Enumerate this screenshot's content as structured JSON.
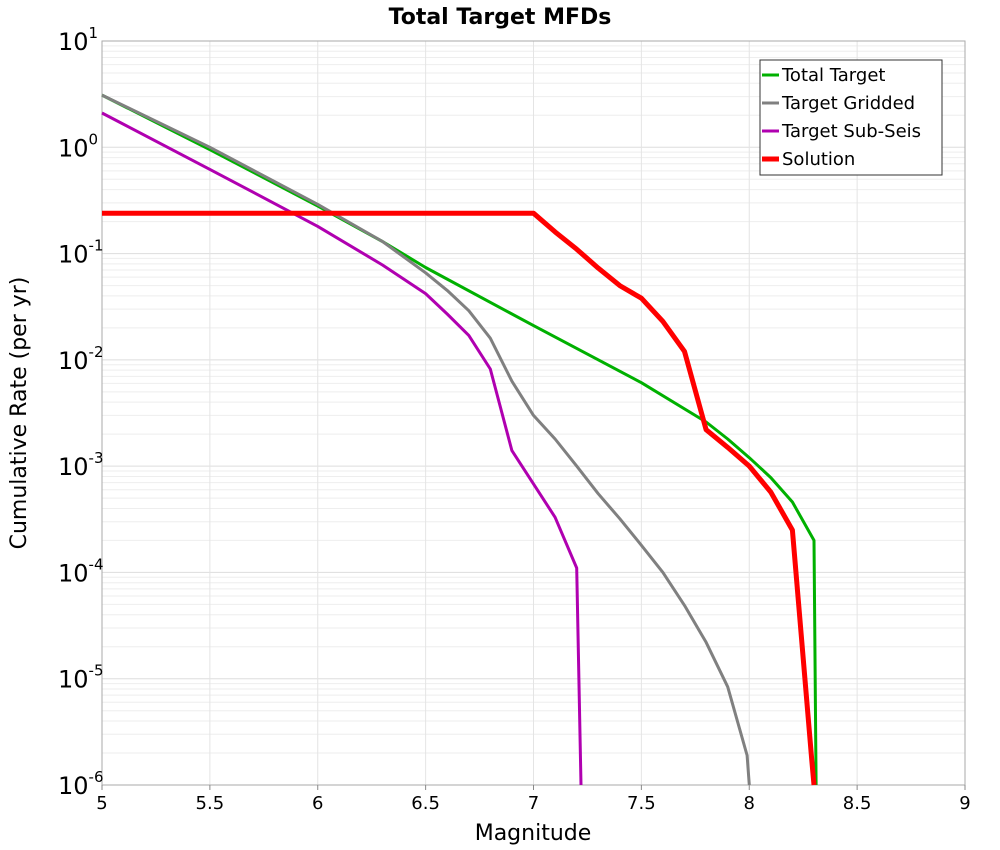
{
  "chart_data": {
    "type": "line",
    "title": "Total Target MFDs",
    "xlabel": "Magnitude",
    "ylabel": "Cumulative Rate (per yr)",
    "xlim": [
      5,
      9
    ],
    "ylim": [
      1e-06,
      10
    ],
    "y_scale": "log",
    "grid": true,
    "legend_position": "top-right",
    "x_ticks": [
      "5",
      "5.5",
      "6",
      "6.5",
      "7",
      "7.5",
      "8",
      "8.5",
      "9"
    ],
    "y_ticks": [
      {
        "base": "10",
        "exp": "1"
      },
      {
        "base": "10",
        "exp": "0"
      },
      {
        "base": "10",
        "exp": "-1"
      },
      {
        "base": "10",
        "exp": "-2"
      },
      {
        "base": "10",
        "exp": "-3"
      },
      {
        "base": "10",
        "exp": "-4"
      },
      {
        "base": "10",
        "exp": "-5"
      },
      {
        "base": "10",
        "exp": "-6"
      }
    ],
    "series": [
      {
        "name": "Total Target",
        "color": "#00b000",
        "width": 3,
        "points": [
          [
            5.0,
            3.1
          ],
          [
            5.5,
            0.95
          ],
          [
            6.0,
            0.28
          ],
          [
            6.3,
            0.13
          ],
          [
            6.5,
            0.074
          ],
          [
            7.0,
            0.021
          ],
          [
            7.5,
            0.0061
          ],
          [
            7.8,
            0.0026
          ],
          [
            7.9,
            0.0018
          ],
          [
            8.0,
            0.0012
          ],
          [
            8.1,
            0.00078
          ],
          [
            8.2,
            0.00046
          ],
          [
            8.3,
            0.0002
          ],
          [
            8.31,
            1e-06
          ]
        ]
      },
      {
        "name": "Target Gridded",
        "color": "#808080",
        "width": 3,
        "points": [
          [
            5.0,
            3.1
          ],
          [
            5.5,
            1.0
          ],
          [
            6.0,
            0.29
          ],
          [
            6.3,
            0.13
          ],
          [
            6.5,
            0.066
          ],
          [
            6.6,
            0.045
          ],
          [
            6.7,
            0.029
          ],
          [
            6.8,
            0.016
          ],
          [
            6.9,
            0.0063
          ],
          [
            7.0,
            0.003
          ],
          [
            7.1,
            0.0018
          ],
          [
            7.2,
            0.001
          ],
          [
            7.3,
            0.00055
          ],
          [
            7.4,
            0.00032
          ],
          [
            7.5,
            0.00018
          ],
          [
            7.6,
            0.0001
          ],
          [
            7.7,
            4.9e-05
          ],
          [
            7.8,
            2.2e-05
          ],
          [
            7.9,
            8.4e-06
          ],
          [
            7.99,
            1.9e-06
          ],
          [
            8.0,
            1e-06
          ]
        ]
      },
      {
        "name": "Target Sub-Seis",
        "color": "#b000b0",
        "width": 3,
        "points": [
          [
            5.0,
            2.1
          ],
          [
            5.5,
            0.62
          ],
          [
            6.0,
            0.18
          ],
          [
            6.3,
            0.078
          ],
          [
            6.5,
            0.042
          ],
          [
            6.6,
            0.027
          ],
          [
            6.7,
            0.017
          ],
          [
            6.8,
            0.0082
          ],
          [
            6.9,
            0.0014
          ],
          [
            7.0,
            0.00068
          ],
          [
            7.1,
            0.00033
          ],
          [
            7.2,
            0.00011
          ],
          [
            7.22,
            1e-06
          ]
        ]
      },
      {
        "name": "Solution",
        "color": "#ff0000",
        "width": 5,
        "points": [
          [
            5.0,
            0.24
          ],
          [
            6.0,
            0.24
          ],
          [
            7.0,
            0.24
          ],
          [
            7.1,
            0.16
          ],
          [
            7.2,
            0.11
          ],
          [
            7.3,
            0.073
          ],
          [
            7.4,
            0.05
          ],
          [
            7.5,
            0.038
          ],
          [
            7.6,
            0.023
          ],
          [
            7.7,
            0.012
          ],
          [
            7.8,
            0.0022
          ],
          [
            7.9,
            0.0015
          ],
          [
            8.0,
            0.001
          ],
          [
            8.1,
            0.00057
          ],
          [
            8.2,
            0.00025
          ],
          [
            8.29,
            1.7e-06
          ],
          [
            8.3,
            1e-06
          ]
        ]
      }
    ]
  }
}
